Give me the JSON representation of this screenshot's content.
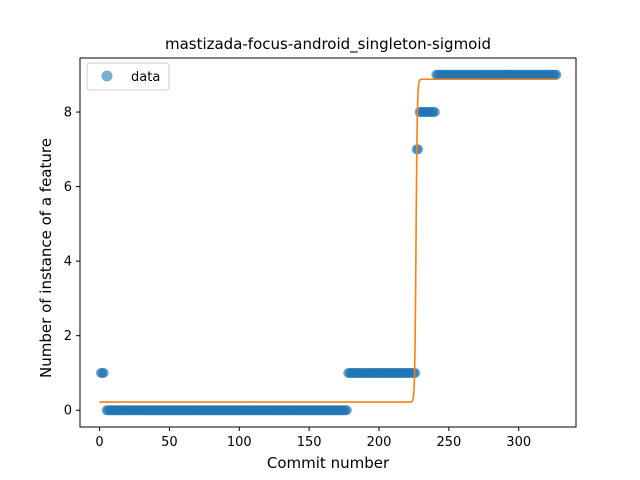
{
  "chart_data": {
    "type": "scatter",
    "title": "mastizada-focus-android_singleton-sigmoid",
    "xlabel": "Commit number",
    "ylabel": "Number of instance of a feature",
    "xlim": [
      -14,
      341
    ],
    "ylim": [
      -0.45,
      9.45
    ],
    "xticks": [
      0,
      50,
      100,
      150,
      200,
      250,
      300
    ],
    "yticks": [
      0,
      2,
      4,
      6,
      8
    ],
    "grid": false,
    "legend": {
      "placement": "top-left",
      "entries": [
        "data"
      ]
    },
    "colors": {
      "data": "#1f77b4",
      "fit": "#ff7f0e"
    },
    "series": [
      {
        "name": "data",
        "kind": "scatter",
        "segments": [
          {
            "x_start": 1,
            "x_end": 3,
            "y": 1
          },
          {
            "x_start": 5,
            "x_end": 177,
            "y": 0
          },
          {
            "x_start": 178,
            "x_end": 226,
            "y": 1
          },
          {
            "x_start": 227,
            "x_end": 228,
            "y": 7
          },
          {
            "x_start": 229,
            "x_end": 240,
            "y": 8
          },
          {
            "x_start": 241,
            "x_end": 327,
            "y": 9
          }
        ]
      },
      {
        "kind": "line",
        "model": "sigmoid",
        "x_range": [
          0,
          327
        ],
        "low": 0.22,
        "high": 8.88,
        "midpoint": 226.5,
        "steepness": 2.2
      }
    ]
  }
}
